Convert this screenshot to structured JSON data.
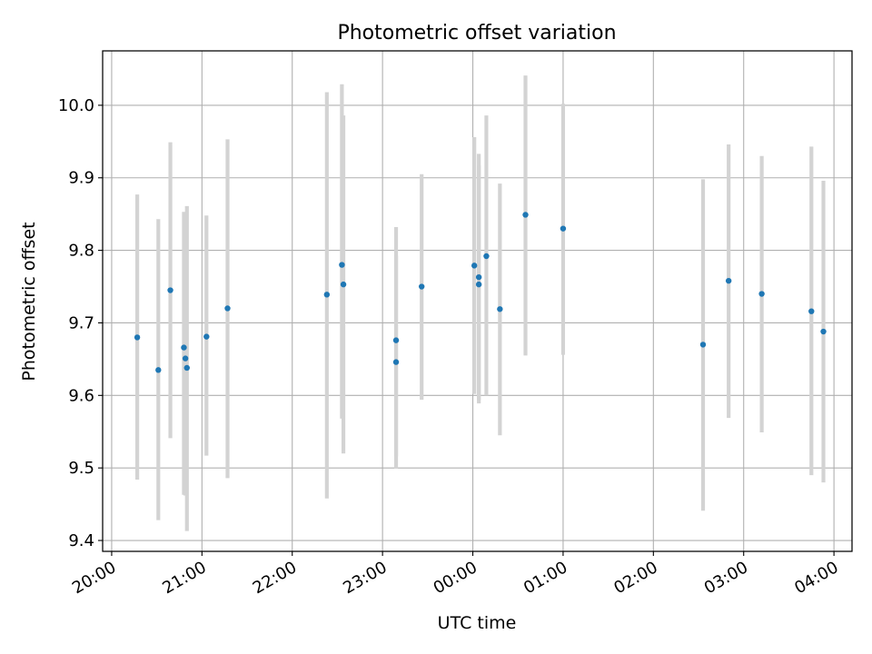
{
  "chart_data": {
    "type": "scatter",
    "title": "Photometric offset variation",
    "xlabel": "UTC time",
    "ylabel": "Photometric offset",
    "x_unit": "hours since 20:00 UTC (plotted axis)",
    "xlim_labels": [
      "20:00",
      "04:00"
    ],
    "ylim": [
      9.385,
      10.075
    ],
    "grid": true,
    "x_ticks": [
      "20:00",
      "21:00",
      "22:00",
      "23:00",
      "00:00",
      "01:00",
      "02:00",
      "03:00",
      "04:00"
    ],
    "y_ticks": [
      "9.4",
      "9.5",
      "9.6",
      "9.7",
      "9.8",
      "9.9",
      "10.0"
    ],
    "colors": {
      "point": "#1f77b4",
      "errorbar": "#d3d3d3",
      "grid": "#b0b0b0"
    },
    "series": [
      {
        "points": [
          {
            "time": "20:17",
            "y": 9.68,
            "ylo": 9.484,
            "yhi": 9.877
          },
          {
            "time": "20:31",
            "y": 9.635,
            "ylo": 9.428,
            "yhi": 9.843
          },
          {
            "time": "20:39",
            "y": 9.745,
            "ylo": 9.541,
            "yhi": 9.949
          },
          {
            "time": "20:48",
            "y": 9.666,
            "ylo": 9.463,
            "yhi": 9.853
          },
          {
            "time": "20:49",
            "y": 9.651,
            "ylo": 9.462,
            "yhi": 9.842
          },
          {
            "time": "20:50",
            "y": 9.638,
            "ylo": 9.413,
            "yhi": 9.861
          },
          {
            "time": "21:03",
            "y": 9.681,
            "ylo": 9.517,
            "yhi": 9.848
          },
          {
            "time": "21:17",
            "y": 9.72,
            "ylo": 9.486,
            "yhi": 9.953
          },
          {
            "time": "22:23",
            "y": 9.739,
            "ylo": 9.458,
            "yhi": 10.018
          },
          {
            "time": "22:33",
            "y": 9.78,
            "ylo": 9.568,
            "yhi": 10.029
          },
          {
            "time": "22:34",
            "y": 9.753,
            "ylo": 9.52,
            "yhi": 9.986
          },
          {
            "time": "23:09",
            "y": 9.676,
            "ylo": 9.516,
            "yhi": 9.832
          },
          {
            "time": "23:09",
            "y": 9.646,
            "ylo": 9.499,
            "yhi": 9.793
          },
          {
            "time": "23:26",
            "y": 9.75,
            "ylo": 9.594,
            "yhi": 9.905
          },
          {
            "time": "00:01",
            "y": 9.779,
            "ylo": 9.602,
            "yhi": 9.956
          },
          {
            "time": "00:04",
            "y": 9.763,
            "ylo": 9.594,
            "yhi": 9.933
          },
          {
            "time": "00:04",
            "y": 9.753,
            "ylo": 9.589,
            "yhi": 9.917
          },
          {
            "time": "00:09",
            "y": 9.792,
            "ylo": 9.6,
            "yhi": 9.986
          },
          {
            "time": "00:18",
            "y": 9.719,
            "ylo": 9.545,
            "yhi": 9.892
          },
          {
            "time": "00:35",
            "y": 9.849,
            "ylo": 9.655,
            "yhi": 10.041
          },
          {
            "time": "01:00",
            "y": 9.83,
            "ylo": 9.656,
            "yhi": 10.002
          },
          {
            "time": "02:33",
            "y": 9.67,
            "ylo": 9.441,
            "yhi": 9.898
          },
          {
            "time": "02:50",
            "y": 9.758,
            "ylo": 9.569,
            "yhi": 9.946
          },
          {
            "time": "03:12",
            "y": 9.74,
            "ylo": 9.549,
            "yhi": 9.93
          },
          {
            "time": "03:45",
            "y": 9.716,
            "ylo": 9.49,
            "yhi": 9.943
          },
          {
            "time": "03:53",
            "y": 9.688,
            "ylo": 9.48,
            "yhi": 9.896
          }
        ]
      }
    ]
  }
}
